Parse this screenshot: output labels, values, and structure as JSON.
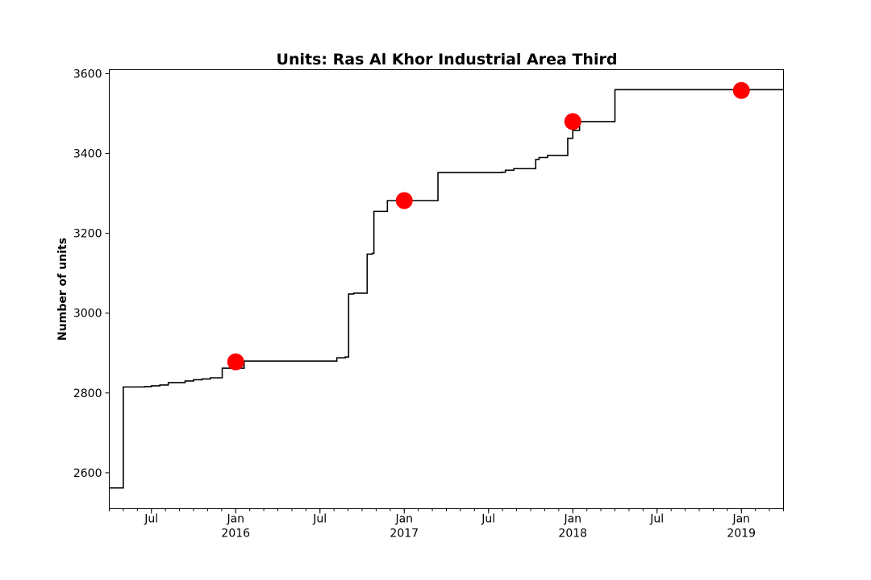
{
  "chart_data": {
    "type": "line",
    "title": "Units: Ras Al Khor Industrial Area Third",
    "xlabel": "",
    "ylabel": "Number of units",
    "ylim": [
      2510,
      3610
    ],
    "xlim": [
      2015.25,
      2019.25
    ],
    "y_ticks": [
      2600,
      2800,
      3000,
      3200,
      3400,
      3600
    ],
    "x_ticks": [
      {
        "x": 2015.5,
        "label": "Jul",
        "sublabel": ""
      },
      {
        "x": 2016.0,
        "label": "Jan",
        "sublabel": "2016"
      },
      {
        "x": 2016.5,
        "label": "Jul",
        "sublabel": ""
      },
      {
        "x": 2017.0,
        "label": "Jan",
        "sublabel": "2017"
      },
      {
        "x": 2017.5,
        "label": "Jul",
        "sublabel": ""
      },
      {
        "x": 2018.0,
        "label": "Jan",
        "sublabel": "2018"
      },
      {
        "x": 2018.5,
        "label": "Jul",
        "sublabel": ""
      },
      {
        "x": 2019.0,
        "label": "Jan",
        "sublabel": "2019"
      }
    ],
    "series": [
      {
        "name": "units",
        "style": "step",
        "color": "#000000",
        "x": [
          2015.25,
          2015.333,
          2015.4,
          2015.46,
          2015.5,
          2015.55,
          2015.6,
          2015.7,
          2015.75,
          2015.8,
          2015.85,
          2015.92,
          2016.05,
          2016.5,
          2016.6,
          2016.65,
          2016.67,
          2016.7,
          2016.78,
          2016.81,
          2016.82,
          2016.88,
          2016.9,
          2017.0,
          2017.08,
          2017.17,
          2017.2,
          2017.5,
          2017.58,
          2017.6,
          2017.65,
          2017.75,
          2017.78,
          2017.8,
          2017.85,
          2017.95,
          2017.97,
          2018.0,
          2018.04,
          2018.08,
          2018.17,
          2018.25,
          2019.25
        ],
        "y": [
          2562,
          2815,
          2815,
          2816,
          2818,
          2820,
          2826,
          2830,
          2833,
          2835,
          2838,
          2862,
          2880,
          2880,
          2888,
          2890,
          3048,
          3050,
          3148,
          3150,
          3255,
          3255,
          3282,
          3282,
          3282,
          3282,
          3352,
          3352,
          3353,
          3358,
          3362,
          3362,
          3385,
          3390,
          3395,
          3395,
          3438,
          3458,
          3480,
          3480,
          3480,
          3560,
          3560
        ]
      },
      {
        "name": "markers",
        "style": "scatter",
        "color": "#ff0000",
        "x": [
          2016.0,
          2017.0,
          2018.0,
          2019.0
        ],
        "y": [
          2878,
          3282,
          3480,
          3558
        ]
      }
    ]
  }
}
